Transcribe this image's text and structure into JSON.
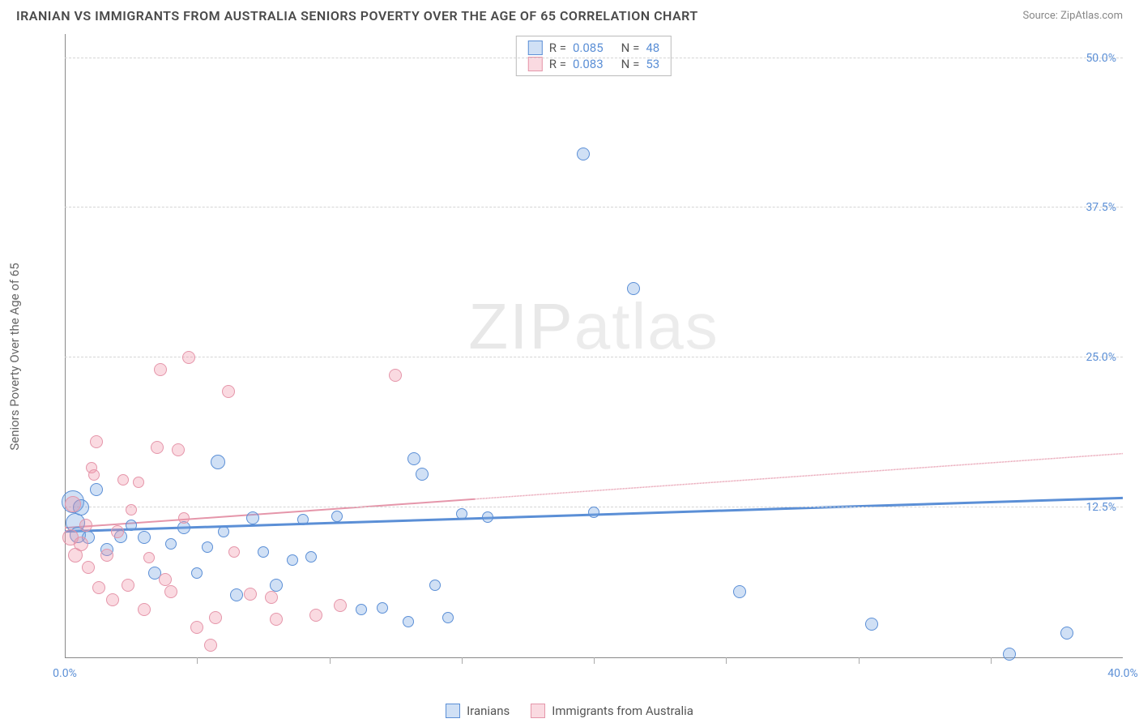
{
  "title": "IRANIAN VS IMMIGRANTS FROM AUSTRALIA SENIORS POVERTY OVER THE AGE OF 65 CORRELATION CHART",
  "source": "Source: ZipAtlas.com",
  "watermark": "ZIPatlas",
  "ylabel": "Seniors Poverty Over the Age of 65",
  "chart": {
    "type": "scatter",
    "xlim": [
      0,
      40
    ],
    "ylim": [
      0,
      52
    ],
    "background_color": "#ffffff",
    "grid_color": "#d5d5d5",
    "axis_color": "#888888",
    "yticks": [
      {
        "v": 12.5,
        "label": "12.5%"
      },
      {
        "v": 25.0,
        "label": "25.0%"
      },
      {
        "v": 37.5,
        "label": "37.5%"
      },
      {
        "v": 50.0,
        "label": "50.0%"
      }
    ],
    "xticks_major": [
      {
        "v": 0,
        "label": "0.0%"
      },
      {
        "v": 40,
        "label": "40.0%"
      }
    ],
    "xticks_minor": [
      5,
      10,
      15,
      20,
      25,
      30,
      35
    ],
    "series": [
      {
        "name": "Iranians",
        "fill": "rgba(120,165,225,0.35)",
        "stroke": "#5b8fd6",
        "r_value": "0.085",
        "n_value": "48",
        "trend": {
          "x1": 0,
          "y1": 10.5,
          "x2": 40,
          "y2": 13.3,
          "solid_to_x": 40
        },
        "points": [
          {
            "x": 0.3,
            "y": 13.0,
            "r": 14
          },
          {
            "x": 0.4,
            "y": 11.2,
            "r": 12
          },
          {
            "x": 0.5,
            "y": 10.2,
            "r": 10
          },
          {
            "x": 0.6,
            "y": 12.5,
            "r": 10
          },
          {
            "x": 0.9,
            "y": 10.0,
            "r": 8
          },
          {
            "x": 1.2,
            "y": 14.0,
            "r": 8
          },
          {
            "x": 1.6,
            "y": 9.0,
            "r": 8
          },
          {
            "x": 2.1,
            "y": 10.1,
            "r": 8
          },
          {
            "x": 2.5,
            "y": 11.0,
            "r": 7
          },
          {
            "x": 3.0,
            "y": 10.0,
            "r": 8
          },
          {
            "x": 3.4,
            "y": 7.0,
            "r": 8
          },
          {
            "x": 4.0,
            "y": 9.5,
            "r": 7
          },
          {
            "x": 4.5,
            "y": 10.8,
            "r": 8
          },
          {
            "x": 5.0,
            "y": 7.0,
            "r": 7
          },
          {
            "x": 5.4,
            "y": 9.2,
            "r": 7
          },
          {
            "x": 5.8,
            "y": 16.3,
            "r": 9
          },
          {
            "x": 6.0,
            "y": 10.5,
            "r": 7
          },
          {
            "x": 6.5,
            "y": 5.2,
            "r": 8
          },
          {
            "x": 7.1,
            "y": 11.6,
            "r": 8
          },
          {
            "x": 7.5,
            "y": 8.8,
            "r": 7
          },
          {
            "x": 8.0,
            "y": 6.0,
            "r": 8
          },
          {
            "x": 8.6,
            "y": 8.1,
            "r": 7
          },
          {
            "x": 9.0,
            "y": 11.5,
            "r": 7
          },
          {
            "x": 9.3,
            "y": 8.4,
            "r": 7
          },
          {
            "x": 10.3,
            "y": 11.8,
            "r": 7
          },
          {
            "x": 11.2,
            "y": 4.0,
            "r": 7
          },
          {
            "x": 12.0,
            "y": 4.1,
            "r": 7
          },
          {
            "x": 13.0,
            "y": 3.0,
            "r": 7
          },
          {
            "x": 13.2,
            "y": 16.6,
            "r": 8
          },
          {
            "x": 13.5,
            "y": 15.3,
            "r": 8
          },
          {
            "x": 14.0,
            "y": 6.0,
            "r": 7
          },
          {
            "x": 14.5,
            "y": 3.3,
            "r": 7
          },
          {
            "x": 15.0,
            "y": 12.0,
            "r": 7
          },
          {
            "x": 16.0,
            "y": 11.7,
            "r": 7
          },
          {
            "x": 19.6,
            "y": 42.0,
            "r": 8
          },
          {
            "x": 20.0,
            "y": 12.1,
            "r": 7
          },
          {
            "x": 21.5,
            "y": 30.8,
            "r": 8
          },
          {
            "x": 25.5,
            "y": 5.5,
            "r": 8
          },
          {
            "x": 30.5,
            "y": 2.8,
            "r": 8
          },
          {
            "x": 35.7,
            "y": 0.3,
            "r": 8
          },
          {
            "x": 37.9,
            "y": 2.0,
            "r": 8
          }
        ]
      },
      {
        "name": "Immigrants from Australia",
        "fill": "rgba(240,150,170,0.35)",
        "stroke": "#e596aa",
        "r_value": "0.083",
        "n_value": "53",
        "trend": {
          "x1": 0,
          "y1": 10.8,
          "x2": 40,
          "y2": 17.0,
          "solid_to_x": 15.5
        },
        "points": [
          {
            "x": 0.2,
            "y": 10.0,
            "r": 10
          },
          {
            "x": 0.3,
            "y": 12.8,
            "r": 10
          },
          {
            "x": 0.4,
            "y": 8.5,
            "r": 9
          },
          {
            "x": 0.6,
            "y": 9.5,
            "r": 9
          },
          {
            "x": 0.8,
            "y": 11.0,
            "r": 8
          },
          {
            "x": 0.9,
            "y": 7.5,
            "r": 8
          },
          {
            "x": 1.0,
            "y": 15.8,
            "r": 7
          },
          {
            "x": 1.1,
            "y": 15.2,
            "r": 7
          },
          {
            "x": 1.2,
            "y": 18.0,
            "r": 8
          },
          {
            "x": 1.3,
            "y": 5.8,
            "r": 8
          },
          {
            "x": 1.6,
            "y": 8.5,
            "r": 8
          },
          {
            "x": 1.8,
            "y": 4.8,
            "r": 8
          },
          {
            "x": 2.0,
            "y": 10.5,
            "r": 8
          },
          {
            "x": 2.2,
            "y": 14.8,
            "r": 7
          },
          {
            "x": 2.4,
            "y": 6.0,
            "r": 8
          },
          {
            "x": 2.5,
            "y": 12.3,
            "r": 7
          },
          {
            "x": 2.8,
            "y": 14.6,
            "r": 7
          },
          {
            "x": 3.0,
            "y": 4.0,
            "r": 8
          },
          {
            "x": 3.2,
            "y": 8.3,
            "r": 7
          },
          {
            "x": 3.5,
            "y": 17.5,
            "r": 8
          },
          {
            "x": 3.6,
            "y": 24.0,
            "r": 8
          },
          {
            "x": 3.8,
            "y": 6.5,
            "r": 8
          },
          {
            "x": 4.0,
            "y": 5.5,
            "r": 8
          },
          {
            "x": 4.3,
            "y": 17.3,
            "r": 8
          },
          {
            "x": 4.5,
            "y": 11.6,
            "r": 7
          },
          {
            "x": 4.7,
            "y": 25.0,
            "r": 8
          },
          {
            "x": 5.0,
            "y": 2.5,
            "r": 8
          },
          {
            "x": 5.5,
            "y": 1.0,
            "r": 8
          },
          {
            "x": 5.7,
            "y": 3.3,
            "r": 8
          },
          {
            "x": 6.2,
            "y": 22.2,
            "r": 8
          },
          {
            "x": 6.4,
            "y": 8.8,
            "r": 7
          },
          {
            "x": 7.0,
            "y": 5.3,
            "r": 8
          },
          {
            "x": 7.8,
            "y": 5.0,
            "r": 8
          },
          {
            "x": 8.0,
            "y": 3.2,
            "r": 8
          },
          {
            "x": 9.5,
            "y": 3.5,
            "r": 8
          },
          {
            "x": 10.4,
            "y": 4.3,
            "r": 8
          },
          {
            "x": 12.5,
            "y": 23.5,
            "r": 8
          }
        ]
      }
    ]
  },
  "legend_top": [
    {
      "swatch_fill": "rgba(120,165,225,0.35)",
      "swatch_stroke": "#5b8fd6",
      "r": "0.085",
      "n": "48"
    },
    {
      "swatch_fill": "rgba(240,150,170,0.35)",
      "swatch_stroke": "#e596aa",
      "r": "0.083",
      "n": "53"
    }
  ],
  "legend_bottom": [
    {
      "swatch_fill": "rgba(120,165,225,0.35)",
      "swatch_stroke": "#5b8fd6",
      "label": "Iranians"
    },
    {
      "swatch_fill": "rgba(240,150,170,0.35)",
      "swatch_stroke": "#e596aa",
      "label": "Immigrants from Australia"
    }
  ]
}
